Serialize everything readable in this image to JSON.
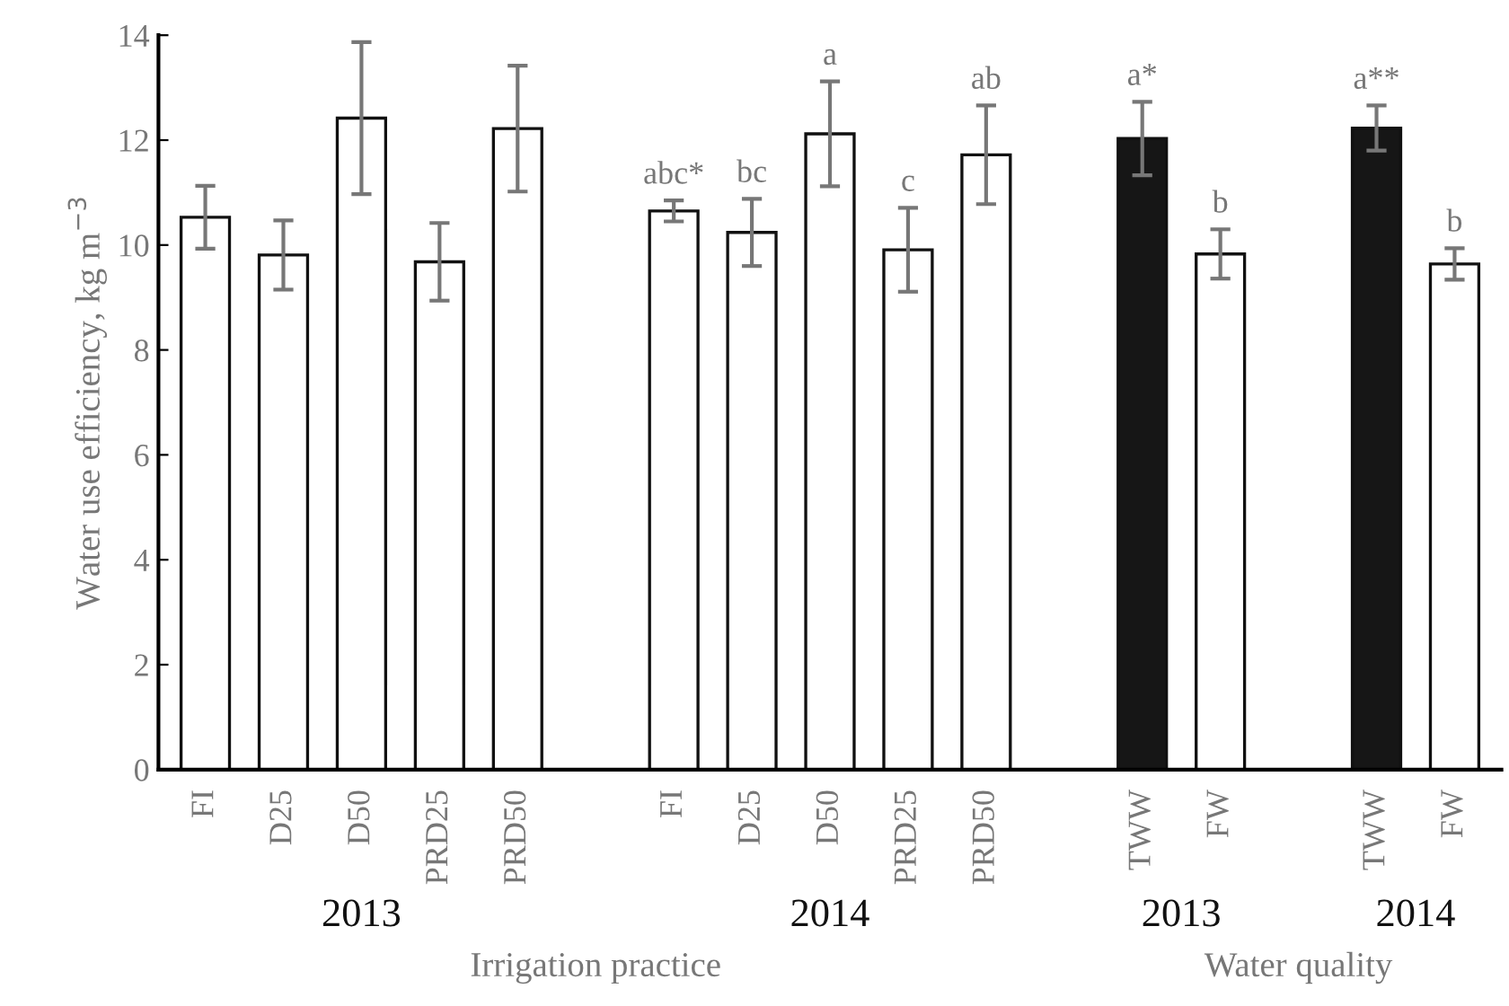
{
  "chart_data": {
    "type": "bar",
    "ylabel": "Water use efficiency, kg m$^{−3}$",
    "categories": [
      "FI",
      "D25",
      "D50",
      "PRD25",
      "PRD50",
      null,
      "FI",
      "D25",
      "D50",
      "PRD25",
      "PRD50",
      null,
      "TWW",
      "FW",
      null,
      "TWW",
      "FW"
    ],
    "values": [
      10.53,
      9.81,
      12.42,
      9.68,
      12.22,
      null,
      10.65,
      10.24,
      12.12,
      9.91,
      11.72,
      null,
      12.03,
      9.83,
      null,
      12.23,
      9.64
    ],
    "errors": [
      0.6,
      0.66,
      1.45,
      0.74,
      1.2,
      null,
      0.2,
      0.64,
      1.0,
      0.8,
      0.94,
      null,
      0.7,
      0.47,
      null,
      0.43,
      0.3
    ],
    "colors": [
      "#ffffff",
      "#ffffff",
      "#ffffff",
      "#ffffff",
      "#ffffff",
      null,
      "#ffffff",
      "#ffffff",
      "#ffffff",
      "#ffffff",
      "#ffffff",
      null,
      "#161616",
      "#ffffff",
      null,
      "#161616",
      "#ffffff"
    ],
    "value_labels": [
      null,
      null,
      null,
      null,
      null,
      null,
      "abc*",
      "bc",
      "a",
      "c",
      "ab",
      null,
      "a*",
      "b",
      null,
      "a**",
      "b"
    ],
    "annotations": [
      "2013",
      "2014",
      "2013",
      "2014",
      "Irrigation practice",
      "Water quality"
    ],
    "ylim": [
      0,
      14
    ],
    "yticks": [
      0,
      2,
      4,
      6,
      8,
      10,
      12,
      14
    ],
    "grid": false,
    "legend": false
  }
}
